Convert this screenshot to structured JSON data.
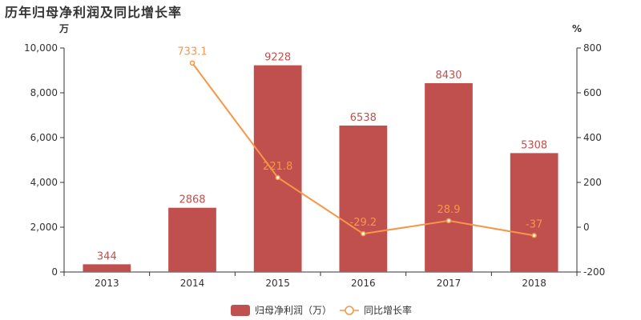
{
  "chart_data": {
    "type": "bar",
    "title": "历年归母净利润及同比增长率",
    "categories": [
      "2013",
      "2014",
      "2015",
      "2016",
      "2017",
      "2018"
    ],
    "left_axis": {
      "unit": "万",
      "ylim": [
        0,
        10000
      ],
      "ticks": [
        0,
        2000,
        4000,
        6000,
        8000,
        10000
      ],
      "tick_labels": [
        "0",
        "2,000",
        "4,000",
        "6,000",
        "8,000",
        "10,000"
      ]
    },
    "right_axis": {
      "unit": "%",
      "ylim": [
        -200,
        800
      ],
      "ticks": [
        -200,
        0,
        200,
        400,
        600,
        800
      ],
      "tick_labels": [
        "-200",
        "0",
        "200",
        "400",
        "600",
        "800"
      ]
    },
    "series": [
      {
        "name": "归母净利润（万）",
        "type": "bar",
        "axis": "left",
        "color": "#c0504d",
        "values": [
          344,
          2868,
          9228,
          6538,
          8430,
          5308
        ],
        "labels": [
          "344",
          "2868",
          "9228",
          "6538",
          "8430",
          "5308"
        ]
      },
      {
        "name": "同比增长率",
        "type": "line",
        "axis": "right",
        "color": "#f79646",
        "values": [
          null,
          733.1,
          221.8,
          -29.2,
          28.9,
          -37
        ],
        "labels": [
          "",
          "733.1",
          "221.8",
          "-29.2",
          "28.9",
          "-37"
        ]
      }
    ],
    "legend_position": "bottom-center",
    "grid": false
  }
}
